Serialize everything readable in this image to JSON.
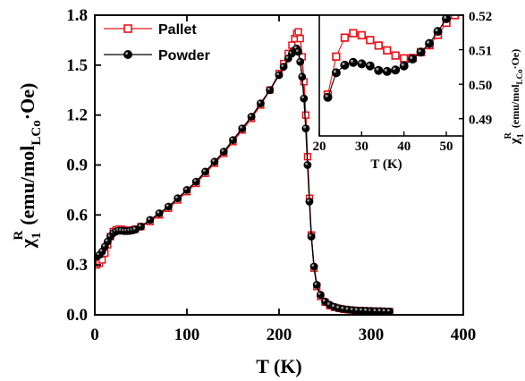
{
  "chart_data": [
    {
      "type": "scatter",
      "role": "main",
      "xlabel": "T (K)",
      "ylabel_parts": {
        "chi": "χ",
        "sub1": "1",
        "sup": "R",
        "unit_pre": "(emu/mol",
        "unit_sub": "LCo",
        "unit_post": "·Oe)"
      },
      "xlim": [
        0,
        400
      ],
      "ylim": [
        0,
        1.8
      ],
      "xticks": [
        0,
        100,
        200,
        300,
        400
      ],
      "xtick_labels": [
        "0",
        "100",
        "200",
        "300",
        "400"
      ],
      "yticks": [
        0.0,
        0.3,
        0.6,
        0.9,
        1.2,
        1.5,
        1.8
      ],
      "ytick_labels": [
        "0.0",
        "0.3",
        "0.6",
        "0.9",
        "1.2",
        "1.5",
        "1.8"
      ],
      "legend_position": "top-left",
      "series": [
        {
          "name": "Pallet",
          "color": "#e8141c",
          "marker": "open-square",
          "x": [
            2,
            5,
            8,
            11,
            14,
            17,
            20,
            23,
            26,
            29,
            32,
            35,
            38,
            41,
            44,
            50,
            60,
            70,
            80,
            90,
            100,
            110,
            120,
            130,
            140,
            150,
            160,
            170,
            180,
            190,
            200,
            205,
            210,
            214,
            217,
            219,
            221,
            223,
            225,
            227,
            229,
            231,
            233,
            235,
            238,
            241,
            245,
            250,
            255,
            260,
            265,
            270,
            275,
            280,
            285,
            290,
            295,
            300,
            305,
            310,
            315,
            320
          ],
          "y": [
            0.3,
            0.31,
            0.33,
            0.37,
            0.42,
            0.47,
            0.5,
            0.51,
            0.515,
            0.514,
            0.51,
            0.508,
            0.508,
            0.51,
            0.515,
            0.53,
            0.56,
            0.6,
            0.64,
            0.69,
            0.74,
            0.79,
            0.85,
            0.91,
            0.97,
            1.04,
            1.11,
            1.18,
            1.26,
            1.35,
            1.45,
            1.51,
            1.57,
            1.62,
            1.66,
            1.69,
            1.7,
            1.66,
            1.55,
            1.4,
            1.2,
            0.95,
            0.7,
            0.48,
            0.28,
            0.17,
            0.11,
            0.075,
            0.055,
            0.045,
            0.038,
            0.033,
            0.03,
            0.028,
            0.026,
            0.025,
            0.024,
            0.023,
            0.022,
            0.022,
            0.021,
            0.02
          ]
        },
        {
          "name": "Powder",
          "color": "#000000",
          "marker": "filled-circle",
          "x": [
            2,
            5,
            8,
            11,
            14,
            17,
            20,
            23,
            26,
            29,
            32,
            35,
            38,
            41,
            44,
            50,
            60,
            70,
            80,
            90,
            100,
            110,
            120,
            130,
            140,
            150,
            160,
            170,
            180,
            190,
            200,
            205,
            210,
            214,
            217,
            219,
            221,
            223,
            225,
            227,
            229,
            231,
            233,
            235,
            238,
            241,
            245,
            250,
            255,
            260,
            265,
            270,
            275,
            280,
            285,
            290,
            295,
            300,
            305,
            310,
            315,
            320
          ],
          "y": [
            0.35,
            0.36,
            0.38,
            0.41,
            0.44,
            0.47,
            0.49,
            0.5,
            0.505,
            0.505,
            0.503,
            0.503,
            0.504,
            0.507,
            0.512,
            0.53,
            0.57,
            0.61,
            0.65,
            0.7,
            0.75,
            0.8,
            0.86,
            0.92,
            0.98,
            1.05,
            1.12,
            1.19,
            1.27,
            1.35,
            1.44,
            1.49,
            1.54,
            1.57,
            1.59,
            1.6,
            1.58,
            1.52,
            1.43,
            1.3,
            1.12,
            0.9,
            0.68,
            0.47,
            0.29,
            0.18,
            0.12,
            0.08,
            0.06,
            0.048,
            0.04,
            0.035,
            0.031,
            0.028,
            0.026,
            0.025,
            0.024,
            0.023,
            0.022,
            0.022,
            0.021,
            0.02
          ]
        }
      ]
    },
    {
      "type": "scatter",
      "role": "inset",
      "xlabel": "T (K)",
      "ylabel_parts": {
        "chi": "χ",
        "sub1": "1",
        "sup": "R",
        "unit_pre": "(emu/mol",
        "unit_sub": "LCo",
        "unit_post": "·Oe)"
      },
      "xlim": [
        20,
        54
      ],
      "ylim": [
        0.485,
        0.52
      ],
      "xticks": [
        20,
        30,
        40,
        50
      ],
      "xtick_labels": [
        "20",
        "30",
        "40",
        "50"
      ],
      "yticks": [
        0.49,
        0.5,
        0.51,
        0.52
      ],
      "ytick_labels": [
        "0.49",
        "0.50",
        "0.51",
        "0.52"
      ],
      "series": [
        {
          "name": "Pallet",
          "color": "#e8141c",
          "marker": "open-square",
          "x": [
            22,
            24,
            26,
            28,
            30,
            32,
            34,
            36,
            38,
            40,
            42,
            44,
            46,
            48,
            50,
            52
          ],
          "y": [
            0.497,
            0.508,
            0.5135,
            0.5148,
            0.5142,
            0.5128,
            0.5112,
            0.5098,
            0.5083,
            0.5075,
            0.5076,
            0.5093,
            0.5113,
            0.5143,
            0.5178,
            0.52
          ]
        },
        {
          "name": "Powder",
          "color": "#000000",
          "marker": "filled-circle",
          "x": [
            22,
            24,
            26,
            28,
            30,
            32,
            34,
            36,
            38,
            40,
            42,
            44,
            46,
            48,
            50,
            52
          ],
          "y": [
            0.4962,
            0.5033,
            0.5055,
            0.5063,
            0.5059,
            0.5053,
            0.504,
            0.5037,
            0.5041,
            0.5053,
            0.5073,
            0.5093,
            0.5118,
            0.5153,
            0.519,
            0.523
          ]
        }
      ]
    }
  ]
}
